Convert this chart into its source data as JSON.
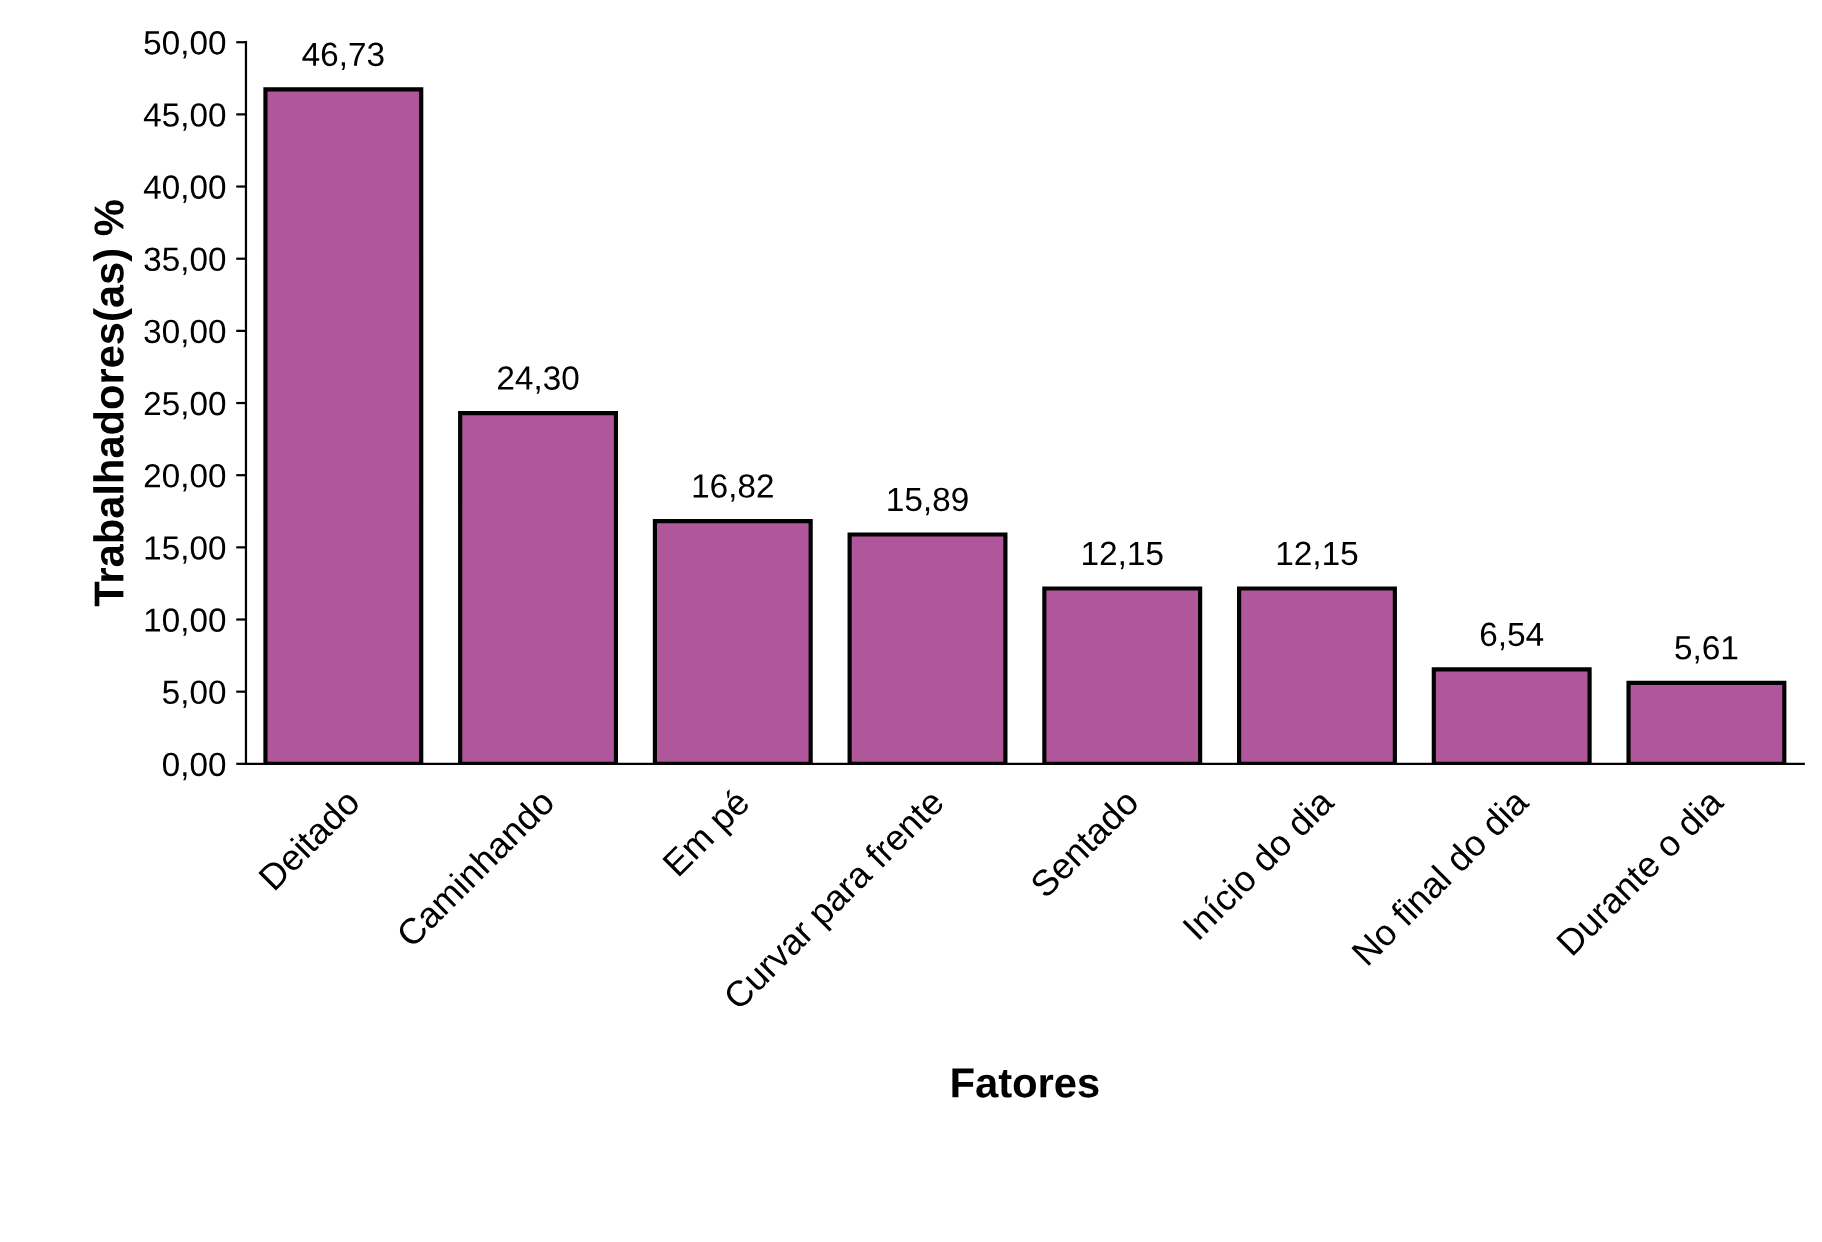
{
  "chart_data": {
    "type": "bar",
    "xlabel": "Fatores",
    "ylabel": "Trabalhadores(as) %",
    "categories": [
      "Deitado",
      "Caminhando",
      "Em pé",
      "Curvar para frente",
      "Sentado",
      "Início do dia",
      "No final do dia",
      "Durante o dia"
    ],
    "values": [
      46.73,
      24.3,
      16.82,
      15.89,
      12.15,
      12.15,
      6.54,
      5.61
    ],
    "value_labels": [
      "46,73",
      "24,30",
      "16,82",
      "15,89",
      "12,15",
      "12,15",
      "6,54",
      "5,61"
    ],
    "color": "#b0569a",
    "ylim": [
      0,
      50
    ],
    "yticks": [
      {
        "value": 0,
        "label": "0,00"
      },
      {
        "value": 5,
        "label": "5,00"
      },
      {
        "value": 10,
        "label": "10,00"
      },
      {
        "value": 15,
        "label": "15,00"
      },
      {
        "value": 20,
        "label": "20,00"
      },
      {
        "value": 25,
        "label": "25,00"
      },
      {
        "value": 30,
        "label": "30,00"
      },
      {
        "value": 35,
        "label": "35,00"
      },
      {
        "value": 40,
        "label": "40,00"
      },
      {
        "value": 45,
        "label": "45,00"
      },
      {
        "value": 50,
        "label": "50,00"
      }
    ],
    "grid": false
  }
}
